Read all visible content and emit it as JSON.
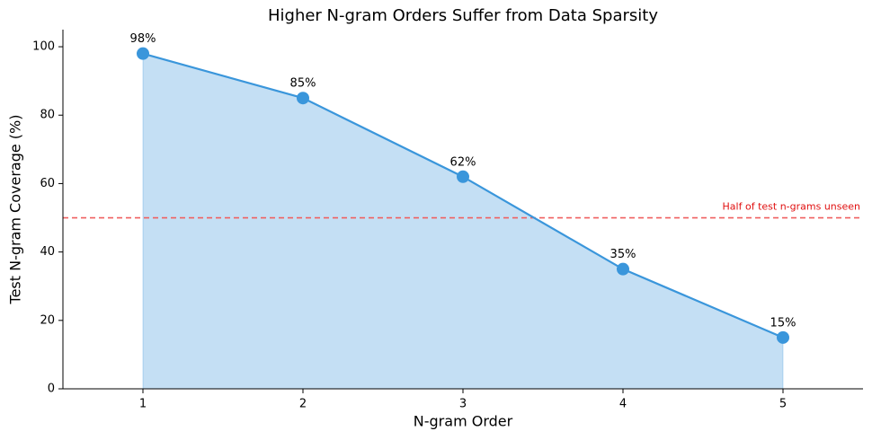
{
  "chart_data": {
    "type": "line",
    "title": "Higher N-gram Orders Suffer from Data Sparsity",
    "x_label": "N-gram Order",
    "y_label": "Test N-gram Coverage (%)",
    "x": [
      1,
      2,
      3,
      4,
      5
    ],
    "series": [
      {
        "color": "#3a96db",
        "values": [
          98,
          85,
          62,
          35,
          15
        ],
        "value_labels": [
          "98%",
          "85%",
          "62%",
          "35%",
          "15%"
        ]
      }
    ],
    "area_fill": true,
    "xlim": [
      0.5,
      5.5
    ],
    "xticks": [
      1,
      2,
      3,
      4,
      5
    ],
    "ylim": [
      0,
      105
    ],
    "yticks": [
      0,
      20,
      40,
      60,
      80,
      100
    ],
    "reference_line": {
      "value": 50,
      "label": "Half of test n-grams unseen",
      "color": "#f06060"
    }
  }
}
